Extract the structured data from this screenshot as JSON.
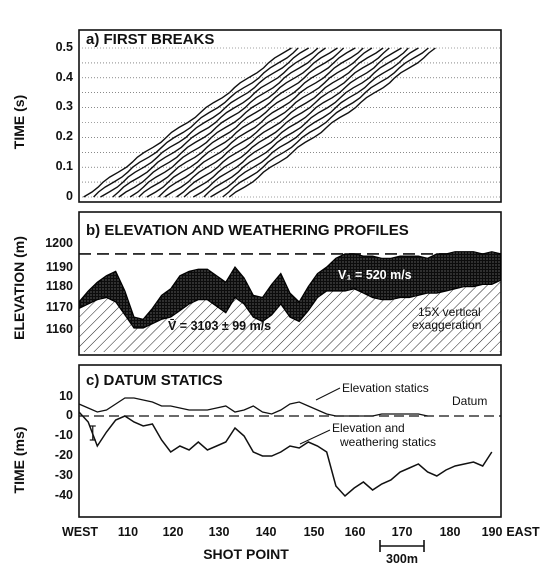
{
  "chart_data": [
    {
      "type": "line",
      "title": "a) FIRST BREAKS",
      "ylabel": "TIME (s)",
      "ylim": [
        0,
        0.5
      ],
      "yticks": [
        "0.5",
        "0.4",
        "0.3",
        "0.2",
        "0.1",
        "0"
      ],
      "xlim": [
        104,
        196
      ],
      "grid": "horizontal dotted",
      "series_count": 17,
      "first_break_series": [
        {
          "x": [
            105,
            150
          ],
          "y": [
            0.0,
            0.5
          ]
        },
        {
          "x": [
            107,
            152
          ],
          "y": [
            0.0,
            0.5
          ]
        },
        {
          "x": [
            109,
            154
          ],
          "y": [
            0.0,
            0.5
          ]
        },
        {
          "x": [
            111,
            156
          ],
          "y": [
            0.0,
            0.5
          ]
        },
        {
          "x": [
            113,
            158
          ],
          "y": [
            0.0,
            0.5
          ]
        },
        {
          "x": [
            115,
            160
          ],
          "y": [
            0.0,
            0.5
          ]
        },
        {
          "x": [
            117,
            162
          ],
          "y": [
            0.0,
            0.5
          ]
        },
        {
          "x": [
            119,
            164
          ],
          "y": [
            0.0,
            0.5
          ]
        },
        {
          "x": [
            121,
            166
          ],
          "y": [
            0.0,
            0.5
          ]
        },
        {
          "x": [
            123,
            168
          ],
          "y": [
            0.0,
            0.5
          ]
        },
        {
          "x": [
            125,
            170
          ],
          "y": [
            0.0,
            0.5
          ]
        },
        {
          "x": [
            127,
            172
          ],
          "y": [
            0.0,
            0.5
          ]
        },
        {
          "x": [
            129,
            174
          ],
          "y": [
            0.0,
            0.5
          ]
        },
        {
          "x": [
            131,
            176
          ],
          "y": [
            0.0,
            0.5
          ]
        },
        {
          "x": [
            133,
            178
          ],
          "y": [
            0.0,
            0.5
          ]
        },
        {
          "x": [
            135,
            180
          ],
          "y": [
            0.0,
            0.5
          ]
        },
        {
          "x": [
            137,
            182
          ],
          "y": [
            0.0,
            0.5
          ]
        }
      ]
    },
    {
      "type": "area",
      "title": "b) ELEVATION AND WEATHERING PROFILES",
      "ylabel": "ELEVATION (m)",
      "ylim": [
        1155,
        1205
      ],
      "yticks": [
        "1200",
        "1190",
        "1180",
        "1170",
        "1160"
      ],
      "xlim": [
        104,
        196
      ],
      "datum_elevation": 1200,
      "x": [
        104,
        106,
        108,
        110,
        112,
        114,
        116,
        118,
        120,
        122,
        124,
        126,
        128,
        130,
        132,
        134,
        136,
        138,
        140,
        142,
        144,
        146,
        148,
        150,
        152,
        154,
        156,
        158,
        160,
        162,
        164,
        166,
        168,
        170,
        172,
        174,
        176,
        178,
        180,
        182,
        184,
        186,
        188,
        190,
        192,
        194,
        196
      ],
      "surface_elevation": [
        1178,
        1183,
        1187,
        1190,
        1192,
        1183,
        1171,
        1170,
        1175,
        1181,
        1184,
        1190,
        1192,
        1193,
        1193,
        1190,
        1187,
        1194,
        1189,
        1181,
        1180,
        1186,
        1191,
        1182,
        1178,
        1185,
        1191,
        1194,
        1198,
        1200,
        1200,
        1199,
        1199,
        1198,
        1198,
        1199,
        1199,
        1199,
        1198,
        1200,
        1200,
        1201,
        1201,
        1201,
        1200,
        1201,
        1200
      ],
      "weathering_base": [
        1175,
        1177,
        1179,
        1180,
        1178,
        1172,
        1166,
        1166,
        1168,
        1170,
        1171,
        1174,
        1177,
        1179,
        1179,
        1176,
        1173,
        1180,
        1177,
        1171,
        1169,
        1172,
        1177,
        1171,
        1169,
        1174,
        1180,
        1183,
        1183,
        1183,
        1184,
        1182,
        1180,
        1179,
        1179,
        1180,
        1180,
        1181,
        1182,
        1182,
        1183,
        1184,
        1185,
        1185,
        1186,
        1186,
        1188
      ],
      "annotations": {
        "weathering_velocity": "V₁ = 520 m/s",
        "bedrock_velocity": "V̄ = 3103 ± 99 m/s",
        "exaggeration_line1": "15X vertical",
        "exaggeration_line2": "exaggeration"
      }
    },
    {
      "type": "line",
      "title": "c) DATUM STATICS",
      "ylabel": "TIME (ms)",
      "ylim": [
        -48,
        15
      ],
      "yticks": [
        "10",
        "0",
        "-10",
        "-20",
        "-30",
        "-40"
      ],
      "xlabel": "SHOT POINT",
      "xlim": [
        104,
        196
      ],
      "xtick_labels": [
        "WEST",
        "110",
        "120",
        "130",
        "140",
        "150",
        "160",
        "170",
        "180",
        "190",
        "EAST"
      ],
      "scale_bar_label": "300m",
      "datum_label": "Datum",
      "series": [
        {
          "name": "Elevation statics",
          "x": [
            104,
            106,
            108,
            110,
            112,
            114,
            116,
            118,
            120,
            122,
            124,
            126,
            128,
            130,
            132,
            134,
            136,
            138,
            140,
            142,
            144,
            146,
            148,
            150,
            152,
            154,
            156,
            158,
            160,
            162,
            164,
            166,
            168,
            170,
            172,
            174,
            176,
            178,
            180
          ],
          "y": [
            6,
            4,
            2,
            3,
            6,
            9,
            9,
            8,
            7,
            5,
            5,
            4,
            3,
            3,
            3,
            4,
            5,
            2,
            3,
            5,
            2,
            1,
            3,
            6,
            7,
            5,
            3,
            1,
            0,
            0,
            0,
            0,
            0,
            1,
            1,
            1,
            1,
            1,
            0
          ]
        },
        {
          "name": "Elevation and weathering statics",
          "x": [
            104,
            106,
            108,
            110,
            112,
            114,
            116,
            118,
            120,
            122,
            124,
            126,
            128,
            130,
            132,
            134,
            136,
            138,
            140,
            142,
            144,
            146,
            148,
            150,
            152,
            154,
            156,
            158,
            160,
            162,
            164,
            166,
            168,
            170,
            172,
            174,
            176,
            178,
            180,
            182,
            184,
            186,
            188,
            190,
            192,
            194
          ],
          "y": [
            2,
            -3,
            -15,
            -8,
            -2,
            0,
            -3,
            -5,
            -4,
            -12,
            -18,
            -15,
            -17,
            -13,
            -17,
            -15,
            -13,
            -6,
            -10,
            -18,
            -20,
            -20,
            -18,
            -15,
            -16,
            -13,
            -15,
            -18,
            -35,
            -40,
            -36,
            -33,
            -37,
            -34,
            -32,
            -28,
            -26,
            -24,
            -28,
            -30,
            -27,
            -25,
            -24,
            -23,
            -25,
            -18
          ]
        }
      ]
    }
  ]
}
